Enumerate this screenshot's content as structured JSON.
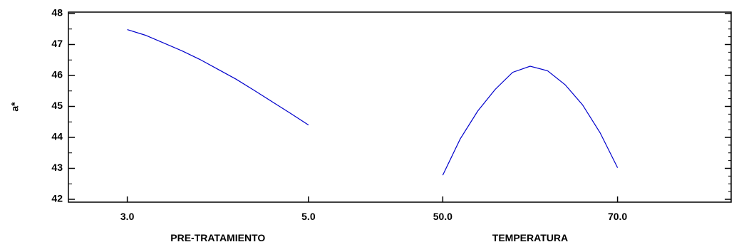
{
  "chart_data": {
    "type": "line",
    "ylabel": "a*",
    "ylim": [
      42,
      48
    ],
    "yticks": [
      "42",
      "43",
      "44",
      "45",
      "46",
      "47",
      "48"
    ],
    "grid": false,
    "line_color": "#0000cc",
    "panels": [
      {
        "xlabel": "PRE-TRATAMIENTO",
        "xlim": [
          2.35,
          6.0
        ],
        "xticks": [
          "3.0",
          "5.0"
        ],
        "x": [
          3.0,
          3.2,
          3.4,
          3.6,
          3.8,
          4.0,
          4.2,
          4.4,
          4.6,
          4.8,
          5.0
        ],
        "y": [
          47.48,
          47.3,
          47.05,
          46.8,
          46.52,
          46.2,
          45.88,
          45.52,
          45.15,
          44.78,
          44.4
        ]
      },
      {
        "xlabel": "TEMPERATURA",
        "xlim": [
          45.0,
          83.0
        ],
        "xticks": [
          "50.0",
          "70.0"
        ],
        "x": [
          50,
          52,
          54,
          56,
          58,
          60,
          62,
          64,
          66,
          68,
          70
        ],
        "y": [
          42.78,
          43.95,
          44.85,
          45.55,
          46.1,
          46.3,
          46.15,
          45.7,
          45.05,
          44.15,
          43.02
        ]
      }
    ]
  }
}
